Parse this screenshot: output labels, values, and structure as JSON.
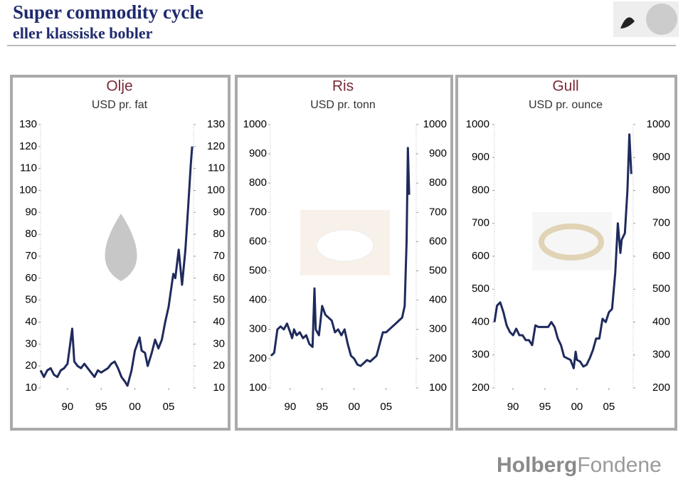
{
  "header": {
    "title": "Super commodity cycle",
    "subtitle": "eller klassiske bobler"
  },
  "chart_data": [
    {
      "type": "line",
      "title": "Olje",
      "subtitle": "USD pr. fat",
      "x": [
        1986,
        1986.5,
        1987,
        1987.5,
        1988,
        1988.5,
        1989,
        1989.5,
        1990,
        1990.7,
        1991,
        1991.5,
        1992,
        1992.5,
        1993,
        1993.5,
        1994,
        1994.5,
        1995,
        1995.5,
        1996,
        1996.5,
        1997,
        1997.5,
        1998,
        1998.5,
        1998.9,
        1999.5,
        2000,
        2000.7,
        2001,
        2001.5,
        2001.9,
        2002.5,
        2003,
        2003.5,
        2004,
        2004.5,
        2005,
        2005.7,
        2006,
        2006.5,
        2007,
        2007.5,
        2007.9,
        2008.3,
        2008.5
      ],
      "series": [
        {
          "color": "#1f2a5c",
          "values": [
            18,
            15,
            18,
            19,
            16,
            15,
            18,
            19,
            21,
            37,
            22,
            20,
            19,
            21,
            19,
            17,
            15,
            18,
            17,
            18,
            19,
            21,
            22,
            19,
            15,
            13,
            11,
            18,
            27,
            33,
            27,
            26,
            20,
            26,
            32,
            28,
            32,
            40,
            47,
            62,
            60,
            73,
            57,
            73,
            92,
            112,
            120
          ]
        }
      ],
      "xlim": [
        1986,
        2008.7
      ],
      "xticks": [
        {
          "value": 1990,
          "label": "90"
        },
        {
          "value": 1995,
          "label": "95"
        },
        {
          "value": 2000,
          "label": "00"
        },
        {
          "value": 2005,
          "label": "05"
        }
      ],
      "ylim": [
        10,
        130
      ],
      "yticks": [
        10,
        20,
        30,
        40,
        50,
        60,
        70,
        80,
        90,
        100,
        110,
        120,
        130
      ]
    },
    {
      "type": "line",
      "title": "Ris",
      "subtitle": "USD pr. tonn",
      "x": [
        1987,
        1987.5,
        1988,
        1988.5,
        1989,
        1989.5,
        1990,
        1990.3,
        1990.6,
        1991,
        1991.5,
        1992,
        1992.5,
        1993,
        1993.5,
        1993.8,
        1994,
        1994.5,
        1995,
        1995.5,
        1996,
        1996.5,
        1997,
        1997.5,
        1998,
        1998.5,
        1999,
        1999.5,
        2000,
        2000.5,
        2001,
        2001.5,
        2002,
        2002.5,
        2003,
        2003.5,
        2004,
        2004.5,
        2005,
        2005.5,
        2006,
        2006.5,
        2007,
        2007.5,
        2007.9,
        2008.2,
        2008.4,
        2008.6
      ],
      "series": [
        {
          "color": "#1f2a5c",
          "values": [
            210,
            220,
            300,
            310,
            300,
            320,
            290,
            270,
            300,
            280,
            290,
            270,
            280,
            250,
            240,
            440,
            300,
            280,
            380,
            350,
            340,
            330,
            290,
            300,
            280,
            300,
            250,
            210,
            200,
            180,
            175,
            185,
            195,
            190,
            200,
            210,
            250,
            290,
            290,
            300,
            310,
            320,
            330,
            340,
            380,
            600,
            920,
            760
          ]
        }
      ],
      "xlim": [
        1986.9,
        2009.7
      ],
      "xticks": [
        {
          "value": 1990,
          "label": "90"
        },
        {
          "value": 1995,
          "label": "95"
        },
        {
          "value": 2000,
          "label": "00"
        },
        {
          "value": 2005,
          "label": "05"
        }
      ],
      "ylim": [
        100,
        1000
      ],
      "yticks": [
        100,
        200,
        300,
        400,
        500,
        600,
        700,
        800,
        900,
        1000
      ]
    },
    {
      "type": "line",
      "title": "Gull",
      "subtitle": "USD pr. ounce",
      "x": [
        1987.1,
        1987.5,
        1988,
        1988.5,
        1989,
        1989.5,
        1990,
        1990.5,
        1991,
        1991.5,
        1992,
        1992.5,
        1993,
        1993.5,
        1994,
        1994.5,
        1995,
        1995.5,
        1996,
        1996.5,
        1997,
        1997.5,
        1998,
        1998.5,
        1999,
        1999.5,
        1999.8,
        2000,
        2000.5,
        2001,
        2001.5,
        2002,
        2002.5,
        2003,
        2003.5,
        2004,
        2004.5,
        2005,
        2005.5,
        2006,
        2006.4,
        2006.8,
        2007,
        2007.5,
        2007.9,
        2008.2,
        2008.5
      ],
      "series": [
        {
          "color": "#1f2a5c",
          "values": [
            400,
            450,
            460,
            430,
            390,
            370,
            360,
            380,
            360,
            360,
            345,
            345,
            330,
            390,
            385,
            385,
            385,
            385,
            400,
            385,
            350,
            330,
            295,
            290,
            285,
            260,
            310,
            285,
            280,
            265,
            270,
            290,
            315,
            350,
            350,
            410,
            400,
            430,
            440,
            550,
            700,
            610,
            650,
            670,
            800,
            970,
            850
          ]
        }
      ],
      "xlim": [
        1987.1,
        2008.8
      ],
      "xticks": [
        {
          "value": 1990,
          "label": "90"
        },
        {
          "value": 1995,
          "label": "95"
        },
        {
          "value": 2000,
          "label": "00"
        },
        {
          "value": 2005,
          "label": "05"
        }
      ],
      "ylim": [
        200,
        1000
      ],
      "yticks": [
        200,
        300,
        400,
        500,
        600,
        700,
        800,
        900,
        1000
      ]
    }
  ],
  "footer": {
    "logo_bold": "Holberg",
    "logo_light": "Fondene"
  }
}
